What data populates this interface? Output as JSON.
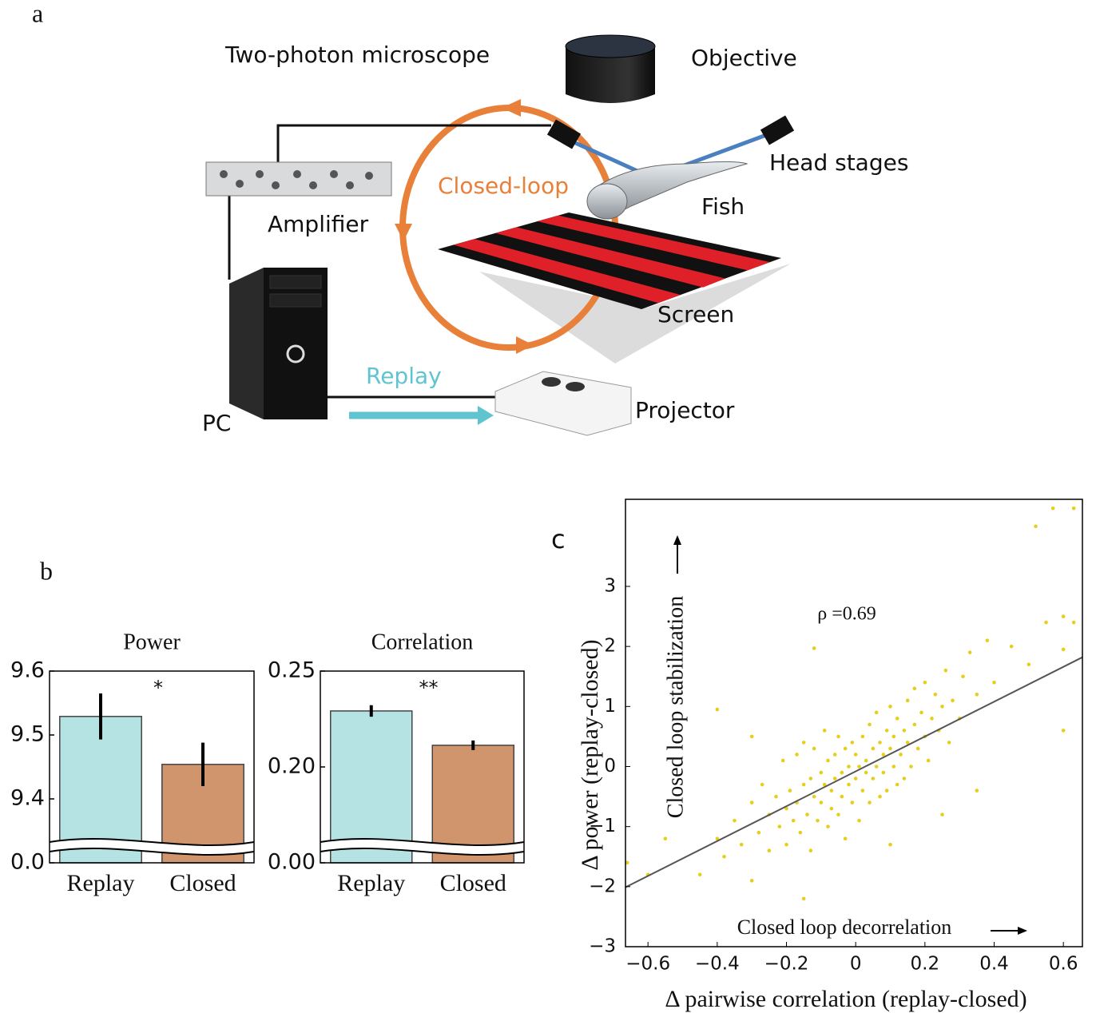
{
  "panel_labels": [
    "a",
    "b",
    "c"
  ],
  "diagram": {
    "labels": {
      "microscope": "Two-photon microscope",
      "objective": "Objective",
      "head_stages": "Head stages",
      "closed_loop": "Closed-loop",
      "fish": "Fish",
      "amplifier": "Amplifier",
      "screen": "Screen",
      "replay": "Replay",
      "projector": "Projector",
      "pc": "PC"
    }
  },
  "chart_data": [
    {
      "type": "bar",
      "title": "Power",
      "categories": [
        "Replay",
        "Closed"
      ],
      "values": [
        9.529,
        9.454
      ],
      "errors": [
        0.036,
        0.034
      ],
      "colors": [
        "#b5e2e2",
        "#d0956c"
      ],
      "ylim": [
        9.3,
        9.6
      ],
      "yticks": [
        {
          "value": 0,
          "label": "0.0"
        },
        9.4,
        9.5,
        9.6
      ],
      "axis_break": true,
      "annotation": "*"
    },
    {
      "type": "bar",
      "title": "Correlation",
      "categories": [
        "Replay",
        "Closed"
      ],
      "values": [
        0.2292,
        0.2113
      ],
      "errors": [
        0.003,
        0.0025
      ],
      "colors": [
        "#b5e2e2",
        "#d0956c"
      ],
      "ylim": [
        0.15,
        0.25
      ],
      "yticks": [
        {
          "value": 0,
          "label": "0.00"
        },
        {
          "value": 0.2,
          "label": "0.20"
        },
        0.25
      ],
      "axis_break": true,
      "annotation": "**"
    },
    {
      "type": "scatter",
      "x_label": "Δ pairwise correlation (replay-closed)",
      "y_label": "Δ power (replay-closed)",
      "annotation": "ρ =0.69",
      "y_arrow_label": "Closed loop stabilization",
      "x_arrow_label": "Closed loop decorrelation",
      "color": "#e6cf1a",
      "xlim": [
        -0.665,
        0.655
      ],
      "ylim": [
        -3,
        4.45
      ],
      "xticks": [
        {
          "value": -0.6,
          "label": "−0.6"
        },
        {
          "value": -0.4,
          "label": "−0.4"
        },
        {
          "value": -0.2,
          "label": "−0.2"
        },
        0,
        0.2,
        0.4,
        0.6
      ],
      "yticks": [
        {
          "value": -3,
          "label": "−3"
        },
        {
          "value": -2,
          "label": "−2"
        },
        {
          "value": -1,
          "label": "−1"
        },
        0,
        1,
        2,
        3
      ],
      "x": [
        -0.45,
        -0.4,
        -0.38,
        -0.35,
        -0.33,
        -0.3,
        -0.3,
        -0.28,
        -0.27,
        -0.25,
        -0.25,
        -0.23,
        -0.22,
        -0.21,
        -0.2,
        -0.2,
        -0.19,
        -0.18,
        -0.17,
        -0.17,
        -0.16,
        -0.15,
        -0.15,
        -0.14,
        -0.13,
        -0.13,
        -0.12,
        -0.12,
        -0.11,
        -0.1,
        -0.1,
        -0.09,
        -0.09,
        -0.08,
        -0.08,
        -0.07,
        -0.07,
        -0.06,
        -0.06,
        -0.05,
        -0.05,
        -0.04,
        -0.04,
        -0.03,
        -0.03,
        -0.02,
        -0.02,
        -0.01,
        -0.01,
        0,
        0,
        0.01,
        0.01,
        0.02,
        0.02,
        0.03,
        0.03,
        0.04,
        0.04,
        0.05,
        0.05,
        0.06,
        0.06,
        0.07,
        0.07,
        0.08,
        0.08,
        0.09,
        0.09,
        0.1,
        0.1,
        0.11,
        0.11,
        0.12,
        0.12,
        0.13,
        0.14,
        0.14,
        0.15,
        0.15,
        0.16,
        0.17,
        0.17,
        0.18,
        0.19,
        0.2,
        0.2,
        0.21,
        0.22,
        0.23,
        0.24,
        0.25,
        0.26,
        0.27,
        0.28,
        0.3,
        0.31,
        0.33,
        0.35,
        0.38,
        0.4,
        0.45,
        0.5,
        -0.55,
        -0.6,
        -0.66,
        -0.12,
        -0.4,
        0.52,
        0.57,
        0.63,
        0.55,
        0.6,
        0.63,
        0.6,
        0.6,
        0.25,
        -0.15,
        0.1,
        0.35,
        -0.3
      ],
      "y": [
        -1.8,
        -1.2,
        -1.5,
        -0.9,
        -1.3,
        -1.9,
        -0.6,
        -1.1,
        -0.3,
        -1.4,
        -0.8,
        -0.5,
        -1.0,
        0.1,
        -0.7,
        -1.3,
        -0.4,
        -0.9,
        0.2,
        -0.6,
        -1.1,
        -0.3,
        0.4,
        -0.8,
        -0.2,
        -1.4,
        -0.5,
        0.3,
        -0.9,
        -0.1,
        -0.6,
        0.6,
        -0.3,
        -1.0,
        0.1,
        -0.4,
        -0.7,
        0.2,
        -0.2,
        -0.8,
        0.5,
        -0.1,
        -0.5,
        0.3,
        -1.2,
        -0.3,
        0.0,
        -0.6,
        0.4,
        -0.2,
        0.2,
        -0.9,
        0.0,
        0.5,
        -0.4,
        0.1,
        -0.1,
        0.7,
        -0.6,
        0.3,
        -0.2,
        0.0,
        0.9,
        -0.5,
        0.4,
        0.2,
        -0.1,
        0.6,
        -0.4,
        0.3,
        1.0,
        0.0,
        0.5,
        -0.3,
        0.8,
        0.2,
        0.6,
        -0.2,
        1.1,
        0.4,
        0.0,
        0.7,
        1.3,
        0.3,
        0.9,
        0.5,
        1.4,
        0.1,
        0.8,
        1.2,
        0.6,
        1.0,
        1.6,
        0.4,
        1.1,
        0.8,
        1.5,
        1.9,
        1.2,
        2.1,
        1.4,
        2.0,
        1.7,
        -1.2,
        -1.8,
        -1.6,
        1.97,
        0.95,
        4.0,
        4.3,
        4.3,
        2.4,
        2.5,
        2.4,
        1.95,
        0.6,
        -0.8,
        -2.2,
        -1.3,
        -0.4,
        0.5
      ],
      "fit_line": {
        "x": [
          -0.665,
          0.655
        ],
        "y": [
          -2.01,
          1.82
        ]
      }
    }
  ]
}
